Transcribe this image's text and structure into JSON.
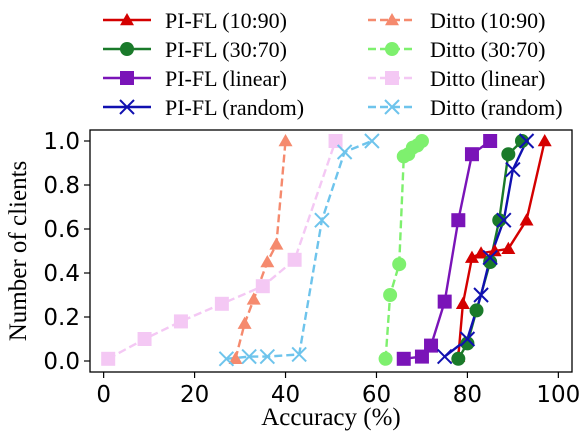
{
  "chart_data": {
    "type": "line",
    "xlabel": "Accuracy (%)",
    "ylabel": "Number of clients",
    "xlim": [
      -3,
      103
    ],
    "ylim": [
      -0.05,
      1.05
    ],
    "xticks": [
      0,
      20,
      40,
      60,
      80,
      100
    ],
    "yticks": [
      0.0,
      0.2,
      0.4,
      0.6,
      0.8,
      1.0
    ],
    "xtick_labels": [
      "0",
      "20",
      "40",
      "60",
      "80",
      "100"
    ],
    "ytick_labels": [
      "0.0",
      "0.2",
      "0.4",
      "0.6",
      "0.8",
      "1.0"
    ],
    "grid": false,
    "legend_position": "top",
    "series": [
      {
        "name": "PI-FL (10:90)",
        "color": "#d40000",
        "dashed": false,
        "marker": "triangle",
        "points": [
          [
            78,
            0.02
          ],
          [
            79,
            0.26
          ],
          [
            81,
            0.47
          ],
          [
            83,
            0.49
          ],
          [
            86,
            0.5
          ],
          [
            89,
            0.51
          ],
          [
            93,
            0.64
          ],
          [
            97,
            1.0
          ]
        ]
      },
      {
        "name": "Ditto (10:90)",
        "color": "#f58a6e",
        "dashed": true,
        "marker": "triangle",
        "points": [
          [
            29,
            0.01
          ],
          [
            31,
            0.17
          ],
          [
            33,
            0.28
          ],
          [
            36,
            0.45
          ],
          [
            38,
            0.53
          ],
          [
            40,
            1.0
          ]
        ]
      },
      {
        "name": "PI-FL (30:70)",
        "color": "#1a7a2a",
        "dashed": false,
        "marker": "circle",
        "points": [
          [
            78,
            0.01
          ],
          [
            80,
            0.08
          ],
          [
            82,
            0.23
          ],
          [
            85,
            0.45
          ],
          [
            87,
            0.64
          ],
          [
            89,
            0.94
          ],
          [
            92,
            1.0
          ]
        ]
      },
      {
        "name": "Ditto (30:70)",
        "color": "#7ef06e",
        "dashed": true,
        "marker": "circle",
        "points": [
          [
            62,
            0.01
          ],
          [
            63,
            0.3
          ],
          [
            65,
            0.44
          ],
          [
            66,
            0.93
          ],
          [
            67,
            0.94
          ],
          [
            68,
            0.97
          ],
          [
            69,
            0.98
          ],
          [
            70,
            1.0
          ]
        ]
      },
      {
        "name": "PI-FL (linear)",
        "color": "#7a14b8",
        "dashed": false,
        "marker": "square",
        "points": [
          [
            66,
            0.01
          ],
          [
            70,
            0.02
          ],
          [
            72,
            0.07
          ],
          [
            75,
            0.27
          ],
          [
            78,
            0.64
          ],
          [
            81,
            0.94
          ],
          [
            85,
            1.0
          ]
        ]
      },
      {
        "name": "Ditto (linear)",
        "color": "#f4c8f4",
        "dashed": true,
        "marker": "square",
        "points": [
          [
            1,
            0.01
          ],
          [
            9,
            0.1
          ],
          [
            17,
            0.18
          ],
          [
            26,
            0.26
          ],
          [
            35,
            0.34
          ],
          [
            42,
            0.46
          ],
          [
            51,
            1.0
          ]
        ]
      },
      {
        "name": "PI-FL (random)",
        "color": "#1010b0",
        "dashed": false,
        "marker": "x",
        "points": [
          [
            75,
            0.02
          ],
          [
            80,
            0.1
          ],
          [
            83,
            0.3
          ],
          [
            85,
            0.47
          ],
          [
            88,
            0.64
          ],
          [
            90,
            0.87
          ],
          [
            93,
            1.0
          ]
        ]
      },
      {
        "name": "Ditto (random)",
        "color": "#6ec4ec",
        "dashed": true,
        "marker": "x",
        "points": [
          [
            27,
            0.01
          ],
          [
            32,
            0.02
          ],
          [
            36,
            0.02
          ],
          [
            43,
            0.03
          ],
          [
            48,
            0.64
          ],
          [
            53,
            0.95
          ],
          [
            59,
            1.0
          ]
        ]
      }
    ]
  }
}
